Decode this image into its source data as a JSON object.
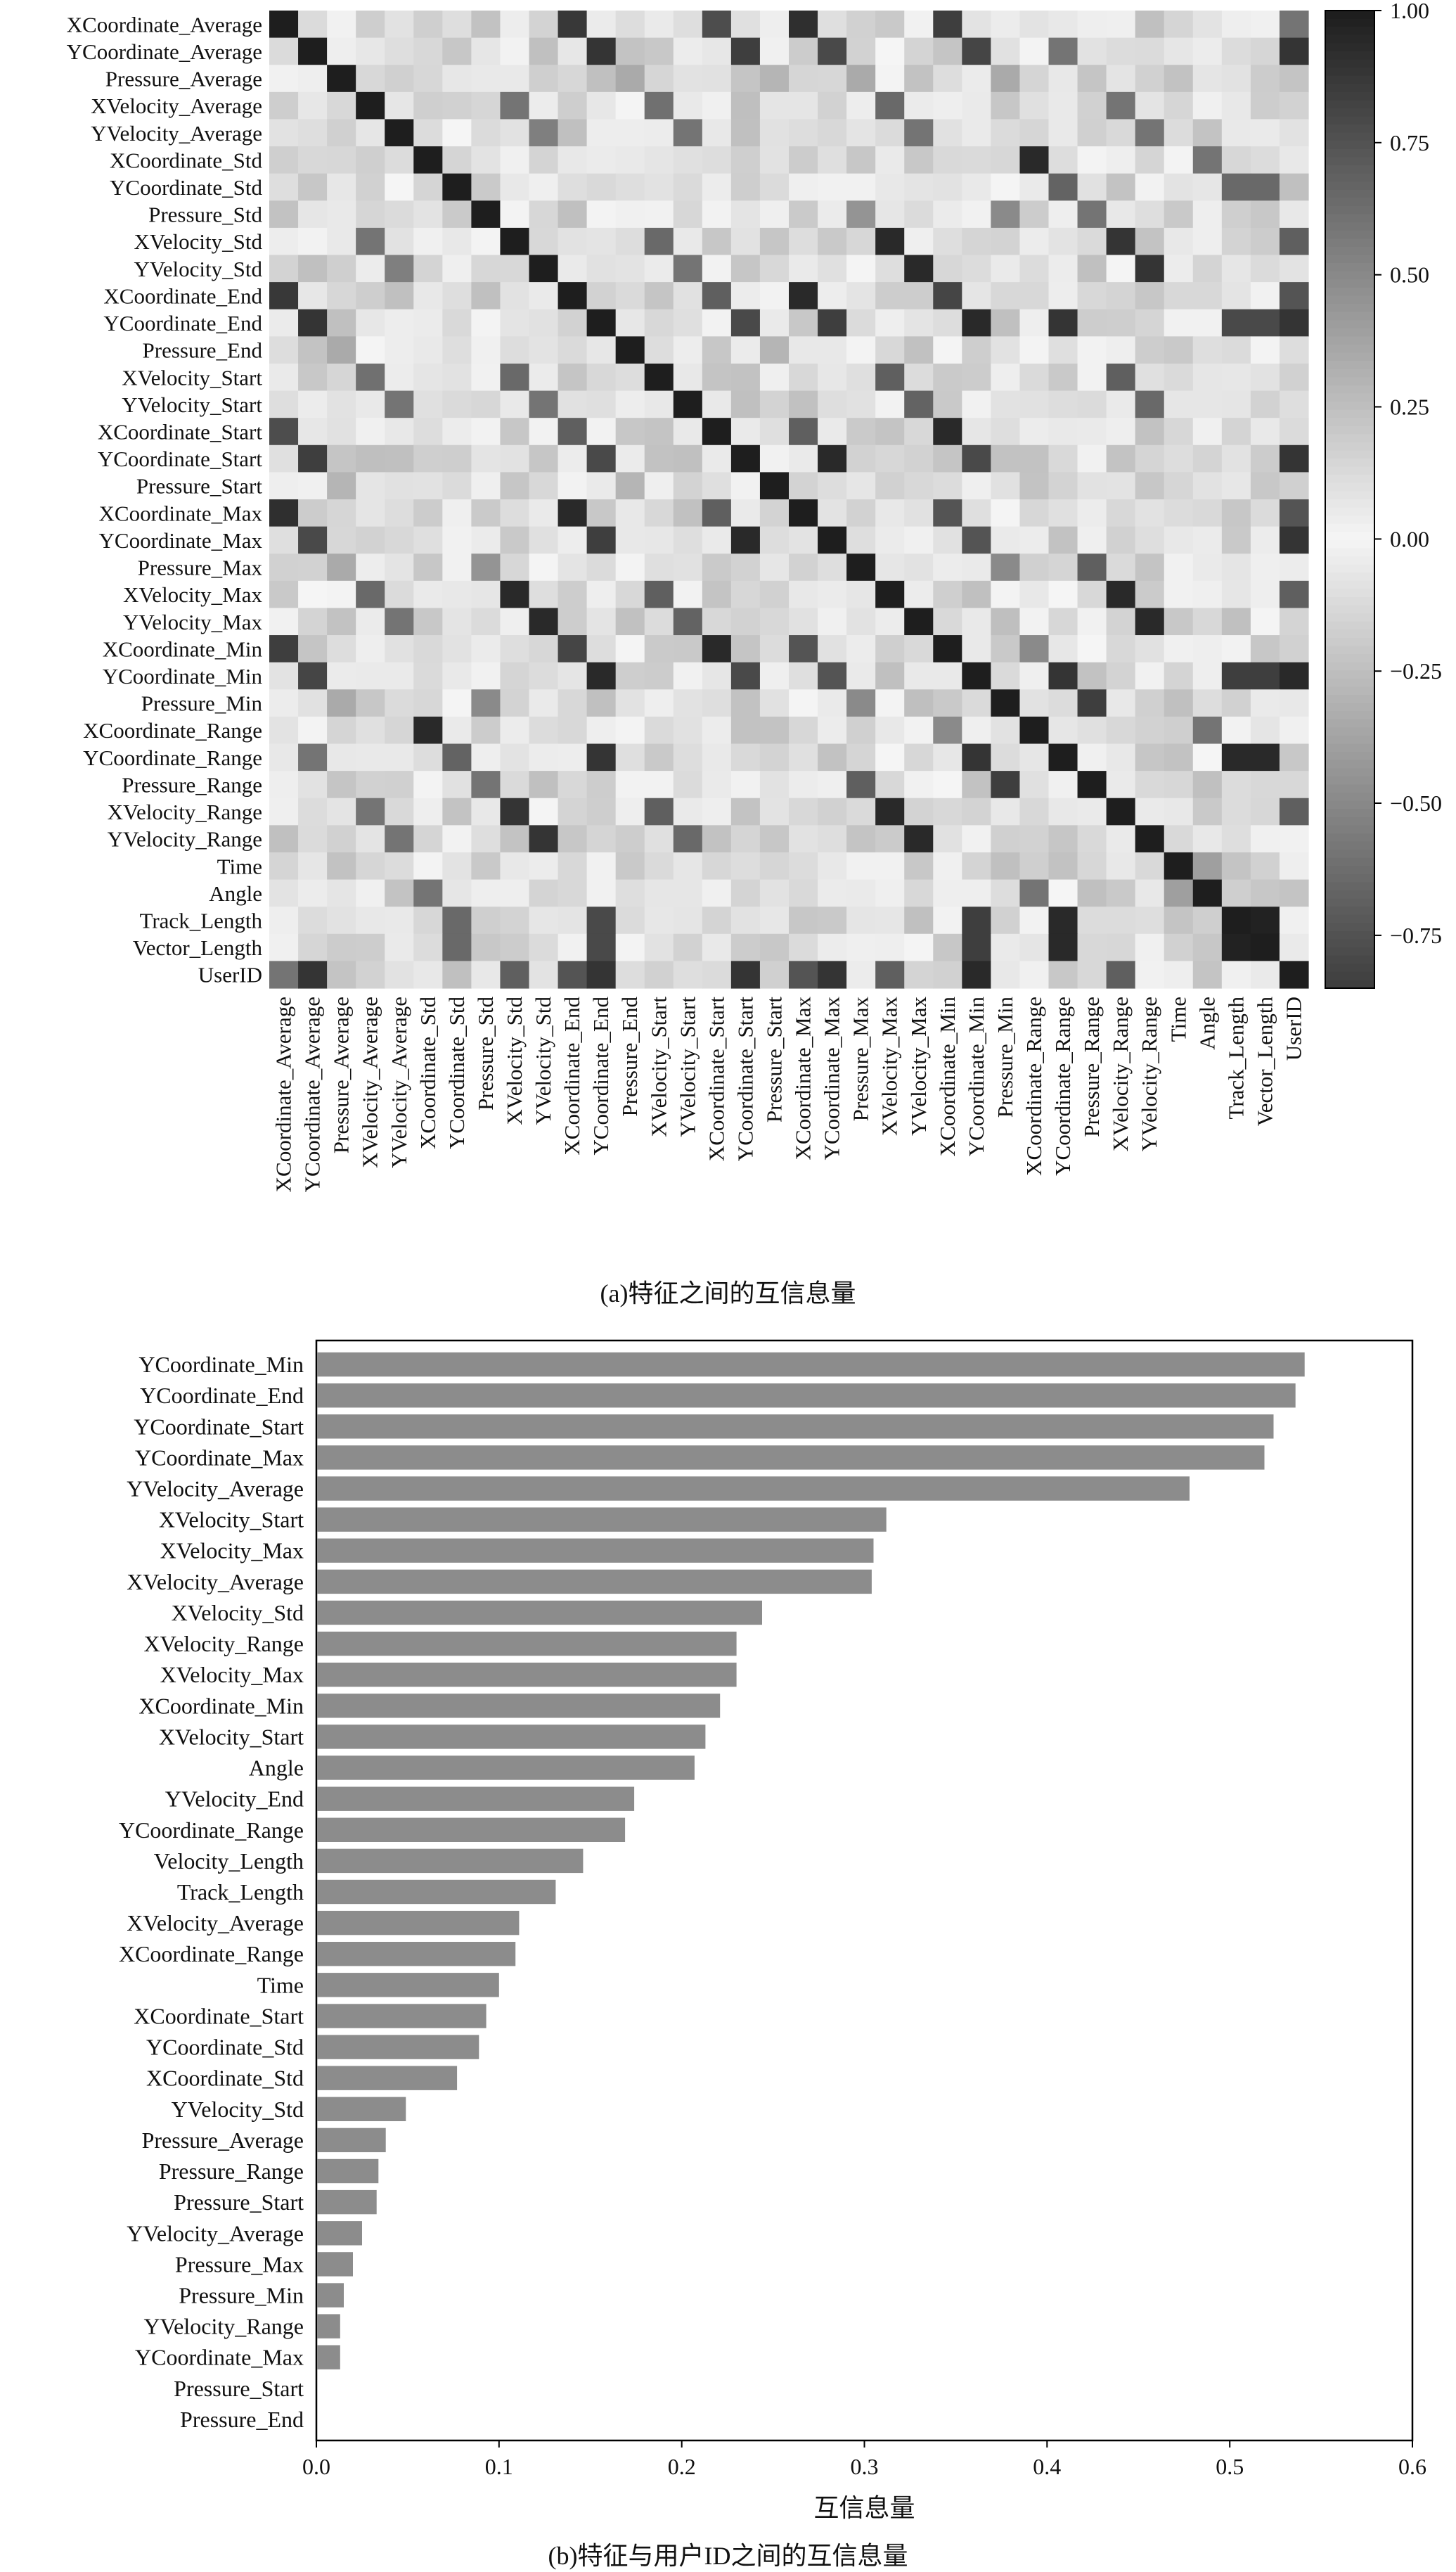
{
  "chart_data": [
    {
      "type": "heatmap",
      "title": "",
      "labels": [
        "XCoordinate_Average",
        "YCoordinate_Average",
        "Pressure_Average",
        "XVelocity_Average",
        "YVelocity_Average",
        "XCoordinate_Std",
        "YCoordinate_Std",
        "Pressure_Std",
        "XVelocity_Std",
        "YVelocity_Std",
        "XCoordinate_End",
        "YCoordinate_End",
        "Pressure_End",
        "XVelocity_Start",
        "YVelocity_Start",
        "XCoordinate_Start",
        "YCoordinate_Start",
        "Pressure_Start",
        "XCoordinate_Max",
        "YCoordinate_Max",
        "Pressure_Max",
        "XVelocity_Max",
        "YVelocity_Max",
        "XCoordinate_Min",
        "YCoordinate_Min",
        "Pressure_Min",
        "XCoordinate_Range",
        "YCoordinate_Range",
        "Pressure_Range",
        "XVelocity_Range",
        "YVelocity_Range",
        "Time",
        "Angle",
        "Track_Length",
        "Vector_Length",
        "UserID"
      ],
      "colorbar": {
        "min": -0.85,
        "max": 1.0,
        "ticks": [
          "1.00",
          "0.75",
          "0.50",
          "0.25",
          "0.00",
          "−0.25",
          "−0.50",
          "−0.75"
        ],
        "tick_values": [
          1.0,
          0.75,
          0.5,
          0.25,
          0.0,
          -0.25,
          -0.5,
          -0.75
        ]
      },
      "colormap": "gray_r",
      "strong_pairs": [
        [
          0,
          10,
          0.88
        ],
        [
          0,
          15,
          0.78
        ],
        [
          0,
          18,
          0.92
        ],
        [
          0,
          23,
          0.85
        ],
        [
          1,
          11,
          0.9
        ],
        [
          1,
          16,
          0.85
        ],
        [
          1,
          19,
          0.8
        ],
        [
          1,
          24,
          0.82
        ],
        [
          1,
          27,
          0.6
        ],
        [
          2,
          12,
          0.35
        ],
        [
          2,
          17,
          0.3
        ],
        [
          2,
          20,
          0.35
        ],
        [
          2,
          25,
          0.35
        ],
        [
          3,
          8,
          0.6
        ],
        [
          3,
          13,
          0.62
        ],
        [
          3,
          21,
          0.65
        ],
        [
          3,
          29,
          0.6
        ],
        [
          4,
          9,
          0.55
        ],
        [
          4,
          14,
          0.6
        ],
        [
          4,
          22,
          0.6
        ],
        [
          4,
          30,
          0.6
        ],
        [
          5,
          26,
          0.95
        ],
        [
          5,
          32,
          0.6
        ],
        [
          6,
          27,
          0.68
        ],
        [
          6,
          33,
          0.65
        ],
        [
          6,
          34,
          0.65
        ],
        [
          7,
          20,
          0.45
        ],
        [
          7,
          25,
          0.5
        ],
        [
          7,
          28,
          0.6
        ],
        [
          8,
          13,
          0.65
        ],
        [
          8,
          21,
          0.95
        ],
        [
          8,
          29,
          0.9
        ],
        [
          9,
          14,
          0.6
        ],
        [
          9,
          22,
          0.95
        ],
        [
          9,
          30,
          0.9
        ],
        [
          10,
          15,
          0.7
        ],
        [
          10,
          18,
          0.95
        ],
        [
          10,
          23,
          0.82
        ],
        [
          11,
          16,
          0.8
        ],
        [
          11,
          19,
          0.85
        ],
        [
          11,
          24,
          0.95
        ],
        [
          11,
          27,
          0.9
        ],
        [
          11,
          33,
          0.8
        ],
        [
          11,
          34,
          0.8
        ],
        [
          12,
          17,
          0.3
        ],
        [
          13,
          21,
          0.7
        ],
        [
          13,
          29,
          0.7
        ],
        [
          14,
          22,
          0.68
        ],
        [
          14,
          30,
          0.65
        ],
        [
          15,
          18,
          0.7
        ],
        [
          15,
          23,
          0.95
        ],
        [
          16,
          19,
          0.95
        ],
        [
          16,
          24,
          0.8
        ],
        [
          18,
          23,
          0.75
        ],
        [
          19,
          24,
          0.75
        ],
        [
          20,
          25,
          0.5
        ],
        [
          20,
          28,
          0.7
        ],
        [
          21,
          29,
          0.95
        ],
        [
          22,
          30,
          0.95
        ],
        [
          23,
          26,
          0.5
        ],
        [
          24,
          27,
          0.9
        ],
        [
          24,
          33,
          0.85
        ],
        [
          24,
          34,
          0.85
        ],
        [
          25,
          28,
          0.85
        ],
        [
          26,
          32,
          0.6
        ],
        [
          27,
          33,
          0.95
        ],
        [
          27,
          34,
          0.95
        ],
        [
          31,
          32,
          0.4
        ],
        [
          33,
          34,
          0.98
        ],
        [
          35,
          1,
          0.9
        ],
        [
          35,
          11,
          0.9
        ],
        [
          35,
          16,
          0.9
        ],
        [
          35,
          19,
          0.9
        ],
        [
          35,
          24,
          0.95
        ],
        [
          35,
          0,
          0.6
        ],
        [
          35,
          10,
          0.75
        ],
        [
          35,
          18,
          0.75
        ],
        [
          35,
          8,
          0.7
        ],
        [
          35,
          21,
          0.7
        ],
        [
          35,
          29,
          0.7
        ]
      ]
    },
    {
      "type": "bar",
      "orientation": "horizontal",
      "xlabel": "互信息量",
      "xlim": [
        0.0,
        0.6
      ],
      "xticks": [
        "0.0",
        "0.1",
        "0.2",
        "0.3",
        "0.4",
        "0.5",
        "0.6"
      ],
      "categories": [
        "YCoordinate_Min",
        "YCoordinate_End",
        "YCoordinate_Start",
        "YCoordinate_Max",
        "YVelocity_Average",
        "XVelocity_Start",
        "XVelocity_Max",
        "XVelocity_Average",
        "XVelocity_Std",
        "XVelocity_Range",
        "XVelocity_Max",
        "XCoordinate_Min",
        "XVelocity_Start",
        "Angle",
        "YVelocity_End",
        "YCoordinate_Range",
        "Velocity_Length",
        "Track_Length",
        "XVelocity_Average",
        "XCoordinate_Range",
        "Time",
        "XCoordinate_Start",
        "YCoordinate_Std",
        "XCoordinate_Std",
        "YVelocity_Std",
        "Pressure_Average",
        "Pressure_Range",
        "Pressure_Start",
        "YVelocity_Average",
        "Pressure_Max",
        "Pressure_Min",
        "YVelocity_Range",
        "YCoordinate_Max",
        "Pressure_Start",
        "Pressure_End"
      ],
      "values": [
        0.541,
        0.536,
        0.524,
        0.519,
        0.478,
        0.312,
        0.305,
        0.304,
        0.244,
        0.23,
        0.23,
        0.221,
        0.213,
        0.207,
        0.174,
        0.169,
        0.146,
        0.131,
        0.111,
        0.109,
        0.1,
        0.093,
        0.089,
        0.077,
        0.049,
        0.038,
        0.034,
        0.033,
        0.025,
        0.02,
        0.015,
        0.013,
        0.013,
        0.0,
        0.0
      ],
      "bar_color": "#8c8c8c"
    }
  ],
  "captions": {
    "a": "(a)特征之间的互信息量",
    "b": "(b)特征与用户ID之间的互信息量"
  }
}
